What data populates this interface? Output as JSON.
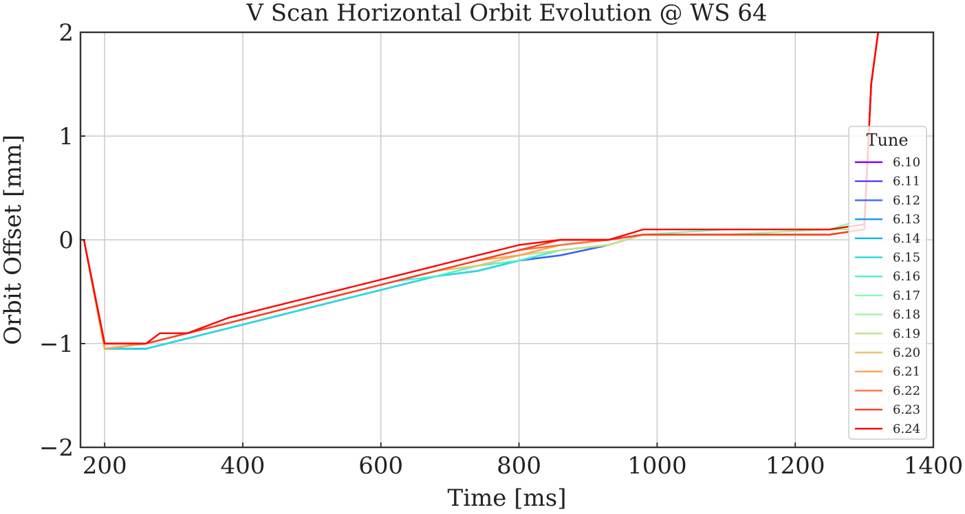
{
  "chart_data": {
    "type": "line",
    "title": "V Scan Horizontal Orbit Evolution @ WS 64",
    "xlabel": "Time [ms]",
    "ylabel": "Orbit Offset [mm]",
    "xlim": [
      165,
      1400
    ],
    "ylim": [
      -2,
      2
    ],
    "xticks": [
      200,
      400,
      600,
      800,
      1000,
      1200,
      1400
    ],
    "xtick_labels": [
      "200",
      "400",
      "600",
      "800",
      "1000",
      "1200",
      "1400"
    ],
    "yticks": [
      -2,
      -1,
      0,
      1,
      2
    ],
    "ytick_labels": [
      "−2",
      "−1",
      "0",
      "1",
      "2"
    ],
    "grid": true,
    "legend": {
      "title": "Tune",
      "placement": "right"
    },
    "series": [
      {
        "name": "6.10",
        "color": "#8000ff",
        "x": [
          170,
          200,
          260,
          320,
          380,
          440,
          500,
          560,
          620,
          680,
          740,
          800,
          860,
          930,
          980,
          1100,
          1250,
          1300,
          1310,
          1320
        ],
        "y": [
          0,
          -1.05,
          -1.05,
          -0.95,
          -0.85,
          -0.75,
          -0.65,
          -0.55,
          -0.45,
          -0.35,
          -0.3,
          -0.2,
          -0.15,
          -0.05,
          0.05,
          0.05,
          0.05,
          0.1,
          1.5,
          2
        ]
      },
      {
        "name": "6.11",
        "color": "#5b35ff",
        "x": [
          170,
          200,
          260,
          320,
          380,
          440,
          500,
          560,
          620,
          680,
          740,
          800,
          860,
          930,
          980,
          1100,
          1250,
          1300,
          1310,
          1320
        ],
        "y": [
          0,
          -1.05,
          -1.05,
          -0.95,
          -0.85,
          -0.75,
          -0.65,
          -0.55,
          -0.45,
          -0.35,
          -0.3,
          -0.2,
          -0.15,
          -0.05,
          0.05,
          0.05,
          0.05,
          0.1,
          1.5,
          2
        ]
      },
      {
        "name": "6.12",
        "color": "#3a67f8",
        "x": [
          170,
          200,
          260,
          320,
          380,
          440,
          500,
          560,
          620,
          680,
          740,
          800,
          860,
          930,
          980,
          1100,
          1250,
          1300,
          1310,
          1320
        ],
        "y": [
          0,
          -1.05,
          -1.05,
          -0.95,
          -0.85,
          -0.75,
          -0.65,
          -0.55,
          -0.45,
          -0.35,
          -0.3,
          -0.2,
          -0.15,
          -0.05,
          0.05,
          0.05,
          0.05,
          0.1,
          1.5,
          2
        ]
      },
      {
        "name": "6.13",
        "color": "#1996f3",
        "x": [
          170,
          200,
          260,
          320,
          380,
          440,
          500,
          560,
          620,
          680,
          740,
          800,
          860,
          930,
          980,
          1100,
          1250,
          1300,
          1310,
          1320
        ],
        "y": [
          0,
          -1.05,
          -1.05,
          -0.95,
          -0.85,
          -0.75,
          -0.65,
          -0.55,
          -0.45,
          -0.35,
          -0.3,
          -0.2,
          -0.1,
          -0.05,
          0.05,
          0.05,
          0.05,
          0.1,
          1.5,
          2
        ]
      },
      {
        "name": "6.14",
        "color": "#0fb8e9",
        "x": [
          170,
          200,
          260,
          320,
          380,
          440,
          500,
          560,
          620,
          680,
          740,
          800,
          860,
          930,
          980,
          1100,
          1250,
          1300,
          1310,
          1320
        ],
        "y": [
          0,
          -1.05,
          -1.05,
          -0.95,
          -0.85,
          -0.75,
          -0.65,
          -0.55,
          -0.45,
          -0.35,
          -0.3,
          -0.2,
          -0.1,
          -0.05,
          0.05,
          0.05,
          0.05,
          0.1,
          1.5,
          2
        ]
      },
      {
        "name": "6.15",
        "color": "#2adcdc",
        "x": [
          170,
          200,
          260,
          320,
          380,
          440,
          500,
          560,
          620,
          680,
          740,
          800,
          860,
          930,
          980,
          1100,
          1250,
          1300,
          1310,
          1320
        ],
        "y": [
          0,
          -1.05,
          -1.05,
          -0.95,
          -0.85,
          -0.75,
          -0.65,
          -0.55,
          -0.45,
          -0.35,
          -0.3,
          -0.2,
          -0.1,
          -0.05,
          0.05,
          0.05,
          0.05,
          0.1,
          1.5,
          2
        ]
      },
      {
        "name": "6.16",
        "color": "#4cf2ce",
        "x": [
          170,
          200,
          260,
          320,
          380,
          440,
          500,
          560,
          620,
          680,
          740,
          800,
          860,
          930,
          980,
          1100,
          1250,
          1300,
          1310,
          1320
        ],
        "y": [
          0,
          -1.05,
          -1.0,
          -0.9,
          -0.8,
          -0.7,
          -0.6,
          -0.5,
          -0.4,
          -0.35,
          -0.25,
          -0.2,
          -0.1,
          -0.05,
          0.05,
          0.05,
          0.05,
          0.1,
          1.5,
          2
        ]
      },
      {
        "name": "6.17",
        "color": "#80ffb4",
        "x": [
          170,
          200,
          260,
          320,
          380,
          440,
          500,
          560,
          620,
          680,
          740,
          800,
          860,
          930,
          980,
          1100,
          1250,
          1300,
          1310,
          1320
        ],
        "y": [
          0,
          -1.05,
          -1.0,
          -0.9,
          -0.8,
          -0.7,
          -0.6,
          -0.5,
          -0.4,
          -0.3,
          -0.25,
          -0.15,
          -0.1,
          -0.05,
          0.05,
          0.1,
          0.1,
          0.2,
          1.5,
          2
        ]
      },
      {
        "name": "6.18",
        "color": "#9ef49e",
        "x": [
          170,
          200,
          260,
          320,
          380,
          440,
          500,
          560,
          620,
          680,
          740,
          800,
          860,
          930,
          980,
          1100,
          1250,
          1300,
          1310,
          1320
        ],
        "y": [
          0,
          -1.05,
          -1.0,
          -0.9,
          -0.8,
          -0.7,
          -0.6,
          -0.5,
          -0.4,
          -0.3,
          -0.25,
          -0.15,
          -0.1,
          -0.05,
          0.05,
          0.05,
          0.1,
          0.1,
          1.5,
          2
        ]
      },
      {
        "name": "6.19",
        "color": "#c4e08a",
        "x": [
          170,
          200,
          260,
          320,
          380,
          440,
          500,
          560,
          620,
          680,
          740,
          800,
          860,
          930,
          980,
          1100,
          1250,
          1300,
          1310,
          1320
        ],
        "y": [
          0,
          -1.05,
          -1.0,
          -0.9,
          -0.8,
          -0.7,
          -0.6,
          -0.5,
          -0.4,
          -0.3,
          -0.25,
          -0.15,
          -0.1,
          -0.05,
          0.05,
          0.05,
          0.05,
          0.1,
          1.5,
          2
        ]
      },
      {
        "name": "6.20",
        "color": "#e8c46c",
        "x": [
          170,
          200,
          260,
          320,
          380,
          440,
          500,
          560,
          620,
          680,
          740,
          800,
          860,
          930,
          980,
          1100,
          1250,
          1300,
          1310,
          1320
        ],
        "y": [
          0,
          -1.05,
          -1.0,
          -0.9,
          -0.8,
          -0.7,
          -0.6,
          -0.5,
          -0.4,
          -0.3,
          -0.25,
          -0.15,
          -0.05,
          0,
          0.05,
          0.05,
          0.05,
          0.1,
          1.5,
          2
        ]
      },
      {
        "name": "6.21",
        "color": "#fea055",
        "x": [
          170,
          200,
          260,
          320,
          380,
          440,
          500,
          560,
          620,
          680,
          740,
          800,
          860,
          930,
          980,
          1100,
          1250,
          1300,
          1310,
          1320
        ],
        "y": [
          0,
          -1.05,
          -1.0,
          -0.9,
          -0.8,
          -0.7,
          -0.6,
          -0.5,
          -0.4,
          -0.3,
          -0.2,
          -0.15,
          -0.05,
          0,
          0.05,
          0.05,
          0.05,
          0.1,
          1.5,
          2
        ]
      },
      {
        "name": "6.22",
        "color": "#ff7040",
        "x": [
          170,
          200,
          260,
          320,
          380,
          440,
          500,
          560,
          620,
          680,
          740,
          800,
          860,
          930,
          980,
          1100,
          1250,
          1300,
          1310,
          1320
        ],
        "y": [
          0,
          -1.0,
          -1.0,
          -0.9,
          -0.8,
          -0.7,
          -0.6,
          -0.5,
          -0.4,
          -0.3,
          -0.2,
          -0.1,
          -0.05,
          0,
          0.05,
          0.05,
          0.05,
          0.1,
          1.5,
          2
        ]
      },
      {
        "name": "6.23",
        "color": "#ff3e20",
        "x": [
          170,
          200,
          260,
          320,
          380,
          440,
          500,
          560,
          620,
          680,
          740,
          800,
          860,
          930,
          980,
          1100,
          1250,
          1300,
          1310,
          1320
        ],
        "y": [
          0,
          -1.0,
          -1.0,
          -0.9,
          -0.8,
          -0.7,
          -0.6,
          -0.5,
          -0.4,
          -0.3,
          -0.2,
          -0.1,
          0,
          0,
          0.05,
          0.05,
          0.05,
          0.1,
          1.5,
          2
        ]
      },
      {
        "name": "6.24",
        "color": "#ff0000",
        "x": [
          170,
          200,
          260,
          280,
          320,
          380,
          440,
          500,
          560,
          620,
          680,
          740,
          800,
          860,
          930,
          980,
          1100,
          1250,
          1300,
          1310,
          1320
        ],
        "y": [
          0,
          -1.0,
          -1.0,
          -0.9,
          -0.9,
          -0.75,
          -0.65,
          -0.55,
          -0.45,
          -0.35,
          -0.25,
          -0.15,
          -0.05,
          0,
          0,
          0.1,
          0.1,
          0.1,
          0.15,
          1.5,
          2
        ]
      }
    ]
  }
}
